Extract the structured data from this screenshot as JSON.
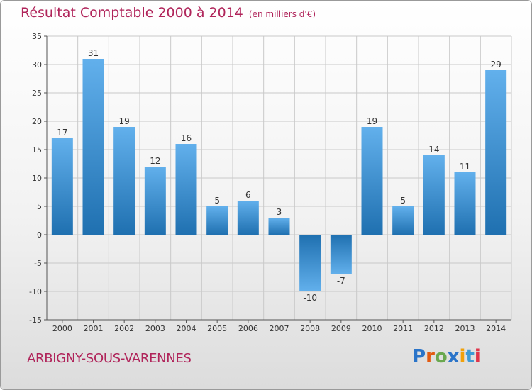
{
  "title": "Résultat Comptable 2000 à 2014",
  "title_unit": "(en milliers d'€)",
  "location": "ARBIGNY-SOUS-VARENNES",
  "brand": {
    "text": "Proxiti",
    "letter_colors": [
      "#2a74c9",
      "#e35b12",
      "#6aa84f",
      "#2a74c9",
      "#f1a10a",
      "#3d9bd6",
      "#e0344a"
    ]
  },
  "colors": {
    "title": "#b0245a",
    "bar_light": "#62b0ec",
    "bar_dark": "#1f70b0",
    "grid": "#c9c9c9"
  },
  "chart_data": {
    "type": "bar",
    "title": "Résultat Comptable 2000 à 2014",
    "categories": [
      "2000",
      "2001",
      "2002",
      "2003",
      "2004",
      "2005",
      "2006",
      "2007",
      "2008",
      "2009",
      "2010",
      "2011",
      "2012",
      "2013",
      "2014"
    ],
    "values": [
      17,
      31,
      19,
      12,
      16,
      5,
      6,
      3,
      -10,
      -7,
      19,
      5,
      14,
      11,
      29
    ],
    "data_labels": [
      "17",
      "31",
      "19",
      "12",
      "16",
      "5",
      "6",
      "3",
      "-10",
      "-7",
      "19",
      "5",
      "14",
      "11",
      "29"
    ],
    "ylim": [
      -15,
      35
    ],
    "yticks": [
      -15,
      -10,
      -5,
      0,
      5,
      10,
      15,
      20,
      25,
      30,
      35
    ],
    "ytick_labels": [
      "-15",
      "-10",
      "-5",
      "0",
      "5",
      "10",
      "15",
      "20",
      "25",
      "30",
      "35"
    ],
    "grid": true,
    "xlabel": "",
    "ylabel": ""
  }
}
